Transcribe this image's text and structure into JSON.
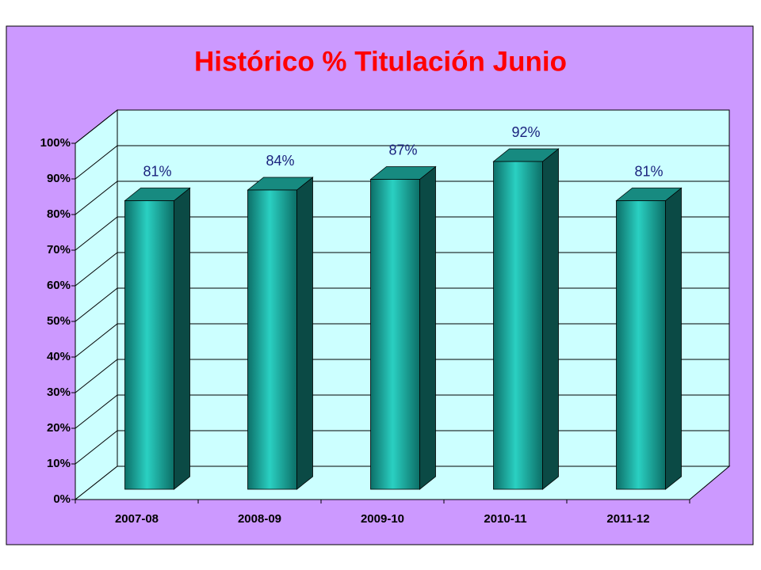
{
  "chart_data": {
    "type": "bar3d",
    "title": "Histórico % Titulación Junio",
    "categories": [
      "2007-08",
      "2008-09",
      "2009-10",
      "2010-11",
      "2011-12"
    ],
    "values": [
      81,
      84,
      87,
      92,
      81
    ],
    "value_labels": [
      "81%",
      "84%",
      "87%",
      "92%",
      "81%"
    ],
    "color": "#1aa89c",
    "ylim": [
      0,
      100
    ],
    "yticks": [
      {
        "value": 0,
        "label": "0%"
      },
      {
        "value": 10,
        "label": "10%"
      },
      {
        "value": 20,
        "label": "20%"
      },
      {
        "value": 30,
        "label": "30%"
      },
      {
        "value": 40,
        "label": "40%"
      },
      {
        "value": 50,
        "label": "50%"
      },
      {
        "value": 60,
        "label": "60%"
      },
      {
        "value": 70,
        "label": "70%"
      },
      {
        "value": 80,
        "label": "80%"
      },
      {
        "value": 90,
        "label": "90%"
      },
      {
        "value": 100,
        "label": "100%"
      }
    ],
    "grid": true
  }
}
